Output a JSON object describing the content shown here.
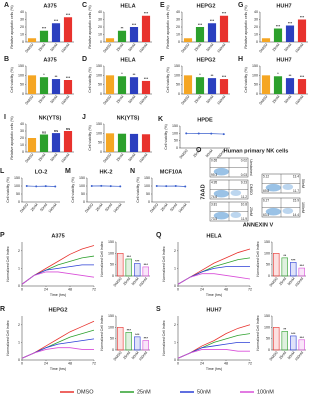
{
  "chart_data": [
    {
      "type": "bar",
      "panel": "A",
      "title": "A375",
      "ylabel": "Relative apoptotic cells (%)",
      "categories": [
        "DMSO",
        "25nM",
        "50nM",
        "100nM"
      ],
      "values": [
        5,
        15,
        25,
        33
      ],
      "sig": [
        null,
        "***",
        "***",
        "***"
      ],
      "colors": [
        "#f5a623",
        "#2ca02c",
        "#2b3fbf",
        "#e8322d"
      ],
      "ylim": [
        0,
        40
      ],
      "yticks": [
        0,
        10,
        20,
        30,
        40
      ]
    },
    {
      "type": "bar",
      "panel": "C",
      "title": "HELA",
      "ylabel": "Relative apoptotic cells (%)",
      "categories": [
        "DMSO",
        "25nM",
        "50nM",
        "100nM"
      ],
      "values": [
        5,
        15,
        20,
        35
      ],
      "sig": [
        null,
        "**",
        "***",
        "***"
      ],
      "colors": [
        "#f5a623",
        "#2ca02c",
        "#2b3fbf",
        "#e8322d"
      ],
      "ylim": [
        0,
        40
      ],
      "yticks": [
        0,
        10,
        20,
        30,
        40
      ]
    },
    {
      "type": "bar",
      "panel": "E",
      "title": "HEPG2",
      "ylabel": "Relative apoptotic cells (%)",
      "categories": [
        "DMSO",
        "25nM",
        "50nM",
        "100nM"
      ],
      "values": [
        5,
        20,
        25,
        35
      ],
      "sig": [
        null,
        "***",
        "***",
        "***"
      ],
      "colors": [
        "#f5a623",
        "#2ca02c",
        "#2b3fbf",
        "#e8322d"
      ],
      "ylim": [
        0,
        40
      ],
      "yticks": [
        0,
        10,
        20,
        30,
        40
      ]
    },
    {
      "type": "bar",
      "panel": "G",
      "title": "HUH7",
      "ylabel": "Relative apoptotic cells (%)",
      "categories": [
        "DMSO",
        "25nM",
        "50nM",
        "100nM"
      ],
      "values": [
        5,
        18,
        22,
        30
      ],
      "sig": [
        null,
        "***",
        "***",
        "***"
      ],
      "colors": [
        "#f5a623",
        "#2ca02c",
        "#2b3fbf",
        "#e8322d"
      ],
      "ylim": [
        0,
        40
      ],
      "yticks": [
        0,
        10,
        20,
        30,
        40
      ]
    },
    {
      "type": "bar",
      "panel": "B",
      "title": "A375",
      "ylabel": "Cell viability (%)",
      "categories": [
        "DMSO",
        "25nM",
        "50nM",
        "100nM"
      ],
      "values": [
        100,
        90,
        80,
        75
      ],
      "sig": [
        null,
        "*",
        "**",
        "***"
      ],
      "colors": [
        "#f5a623",
        "#2ca02c",
        "#2b3fbf",
        "#e8322d"
      ],
      "ylim": [
        0,
        150
      ],
      "yticks": [
        0,
        50,
        100,
        150
      ]
    },
    {
      "type": "bar",
      "panel": "D",
      "title": "HELA",
      "ylabel": "Cell viability (%)",
      "categories": [
        "DMSO",
        "25nM",
        "50nM",
        "100nM"
      ],
      "values": [
        100,
        95,
        90,
        70
      ],
      "sig": [
        null,
        "*",
        "**",
        "***"
      ],
      "colors": [
        "#f5a623",
        "#2ca02c",
        "#2b3fbf",
        "#e8322d"
      ],
      "ylim": [
        0,
        150
      ],
      "yticks": [
        0,
        50,
        100,
        150
      ]
    },
    {
      "type": "bar",
      "panel": "F",
      "title": "HEPG2",
      "ylabel": "Cell viability (%)",
      "categories": [
        "DMSO",
        "25nM",
        "50nM",
        "100nM"
      ],
      "values": [
        100,
        90,
        85,
        80
      ],
      "sig": [
        null,
        "*",
        "**",
        "***"
      ],
      "colors": [
        "#f5a623",
        "#2ca02c",
        "#2b3fbf",
        "#e8322d"
      ],
      "ylim": [
        0,
        150
      ],
      "yticks": [
        0,
        50,
        100,
        150
      ]
    },
    {
      "type": "bar",
      "panel": "H",
      "title": "HUH7",
      "ylabel": "Cell viability (%)",
      "categories": [
        "DMSO",
        "25nM",
        "50nM",
        "100nM"
      ],
      "values": [
        100,
        95,
        85,
        80
      ],
      "sig": [
        null,
        "*",
        "**",
        "***"
      ],
      "colors": [
        "#f5a623",
        "#2ca02c",
        "#2b3fbf",
        "#e8322d"
      ],
      "ylim": [
        0,
        150
      ],
      "yticks": [
        0,
        50,
        100,
        150
      ]
    },
    {
      "type": "bar",
      "panel": "I",
      "title": "NK(YTS)",
      "ylabel": "Relative apoptotic cells (%)",
      "categories": [
        "DMSO",
        "25nM",
        "50nM",
        "100nM"
      ],
      "values": [
        20,
        25,
        27,
        30
      ],
      "sig": [
        null,
        "ns",
        "ns",
        "ns"
      ],
      "colors": [
        "#f5a623",
        "#2ca02c",
        "#2b3fbf",
        "#e8322d"
      ],
      "ylim": [
        0,
        40
      ],
      "yticks": [
        0,
        10,
        20,
        30,
        40
      ]
    },
    {
      "type": "bar",
      "panel": "J",
      "title": "NK(YTS)",
      "ylabel": "Cell viability (%)",
      "categories": [
        "DMSO",
        "25nM",
        "50nM",
        "100nM"
      ],
      "values": [
        100,
        98,
        97,
        95
      ],
      "colors": [
        "#f5a623",
        "#2ca02c",
        "#2b3fbf",
        "#e8322d"
      ],
      "ylim": [
        0,
        150
      ],
      "yticks": [
        0,
        50,
        100,
        150
      ]
    },
    {
      "type": "line",
      "panel": "K",
      "title": "HPDE",
      "ylabel": "Cell viability (%)",
      "categories": [
        "DMSO",
        "25nM",
        "50nM",
        "100nM"
      ],
      "values": [
        100,
        99,
        98,
        95
      ],
      "color": "#3a5fcd",
      "ylim": [
        0,
        150
      ],
      "yticks": [
        0,
        50,
        100,
        150
      ]
    },
    {
      "type": "line",
      "panel": "L",
      "title": "LO-2",
      "ylabel": "Cell viability (%)",
      "categories": [
        "DMSO",
        "25nM",
        "50nM",
        "100nM"
      ],
      "values": [
        100,
        98,
        99,
        97
      ],
      "color": "#3a5fcd",
      "ylim": [
        0,
        150
      ],
      "yticks": [
        0,
        50,
        100,
        150
      ]
    },
    {
      "type": "line",
      "panel": "M",
      "title": "HK-2",
      "ylabel": "Cell viability (%)",
      "categories": [
        "DMSO",
        "25nM",
        "50nM",
        "100nM"
      ],
      "values": [
        100,
        101,
        99,
        98
      ],
      "color": "#3a5fcd",
      "ylim": [
        0,
        150
      ],
      "yticks": [
        0,
        50,
        100,
        150
      ]
    },
    {
      "type": "line",
      "panel": "N",
      "title": "MCF10A",
      "ylabel": "Cell viability (%)",
      "categories": [
        "DMSO",
        "25nM",
        "50nM",
        "100nM"
      ],
      "values": [
        100,
        99,
        100,
        97
      ],
      "color": "#3a5fcd",
      "ylim": [
        0,
        150
      ],
      "yticks": [
        0,
        50,
        100,
        150
      ]
    },
    {
      "type": "flow",
      "panel": "O",
      "title": "Human primary NK cells",
      "xlabel": "ANNEXIN V",
      "ylabel": "7AAD",
      "plots": [
        {
          "name": "Unstained",
          "quadrants": [
            0.65,
            0.02,
            99.3,
            0.03
          ]
        },
        {
          "name": "DMSO",
          "quadrants": [
            4.95,
            9.23,
            74.6,
            11.2
          ]
        },
        {
          "name": "25nM",
          "quadrants": [
            3.81,
            10.8,
            73.5,
            11.9
          ]
        },
        {
          "name": "50nM",
          "quadrants": [
            5.12,
            13.4,
            69.8,
            11.7
          ]
        },
        {
          "name": "100nM",
          "quadrants": [
            6.27,
            15.9,
            63.4,
            14.4
          ]
        }
      ]
    },
    {
      "type": "line",
      "panel": "P",
      "title": "A375",
      "ylabel": "Normalized Cell Index",
      "xlabel": "Time (hrs)",
      "x": [
        0,
        12,
        24,
        36,
        48,
        60,
        72
      ],
      "xlim": [
        0,
        72
      ],
      "xticks": [
        0,
        24,
        48,
        72
      ],
      "ylim": [
        0,
        2.5
      ],
      "yticks": [
        0,
        1,
        2
      ],
      "series": [
        {
          "name": "DMSO",
          "color": "#e8322d",
          "values": [
            0.1,
            0.6,
            1.0,
            1.4,
            1.8,
            2.1,
            2.3
          ]
        },
        {
          "name": "25nM",
          "color": "#2ca02c",
          "values": [
            0.1,
            0.6,
            0.9,
            1.2,
            1.4,
            1.6,
            1.7
          ]
        },
        {
          "name": "50nM",
          "color": "#2b3fd6",
          "values": [
            0.1,
            0.6,
            0.9,
            1.0,
            1.1,
            1.2,
            1.2
          ]
        },
        {
          "name": "100nM",
          "color": "#d94fd9",
          "values": [
            0.1,
            0.6,
            0.8,
            0.8,
            0.7,
            0.6,
            0.5
          ]
        }
      ]
    },
    {
      "type": "bar",
      "fill": "outline",
      "ylabel": "Normalized Cell Index",
      "categories": [
        "DMSO",
        "25nM",
        "50nM",
        "100nM"
      ],
      "values": [
        100,
        75,
        55,
        40
      ],
      "sig": [
        null,
        "***",
        "***",
        "***"
      ],
      "colors": [
        "#e8322d",
        "#2ca02c",
        "#2b3fd6",
        "#d94fd9"
      ],
      "ylim": [
        0,
        150
      ],
      "yticks": [
        0,
        50,
        100,
        150
      ]
    },
    {
      "type": "line",
      "panel": "Q",
      "title": "HELA",
      "ylabel": "Normalized Cell Index",
      "xlabel": "Time (hrs)",
      "x": [
        0,
        12,
        24,
        36,
        48,
        60,
        72
      ],
      "xlim": [
        0,
        72
      ],
      "xticks": [
        0,
        24,
        48,
        72
      ],
      "ylim": [
        0,
        2.5
      ],
      "yticks": [
        0,
        1,
        2
      ],
      "series": [
        {
          "color": "#e8322d",
          "values": [
            0.1,
            0.5,
            0.9,
            1.3,
            1.6,
            1.9,
            2.1
          ]
        },
        {
          "color": "#2ca02c",
          "values": [
            0.1,
            0.5,
            0.8,
            1.1,
            1.3,
            1.5,
            1.6
          ]
        },
        {
          "color": "#2b3fd6",
          "values": [
            0.1,
            0.5,
            0.8,
            1.0,
            1.1,
            1.1,
            1.1
          ]
        },
        {
          "color": "#d94fd9",
          "values": [
            0.1,
            0.5,
            0.7,
            0.7,
            0.6,
            0.5,
            0.4
          ]
        }
      ]
    },
    {
      "type": "bar",
      "fill": "outline",
      "ylabel": "Normalized Cell Index",
      "categories": [
        "DMSO",
        "25nM",
        "50nM",
        "100nM"
      ],
      "values": [
        100,
        80,
        60,
        35
      ],
      "sig": [
        null,
        "**",
        "***",
        "***"
      ],
      "colors": [
        "#e8322d",
        "#2ca02c",
        "#2b3fd6",
        "#d94fd9"
      ],
      "ylim": [
        0,
        150
      ],
      "yticks": [
        0,
        50,
        100,
        150
      ]
    },
    {
      "type": "line",
      "panel": "R",
      "title": "HEPG2",
      "ylabel": "Normalized Cell Index",
      "xlabel": "Time (hrs)",
      "x": [
        0,
        12,
        24,
        36,
        48,
        60,
        72
      ],
      "xlim": [
        0,
        72
      ],
      "xticks": [
        0,
        24,
        48,
        72
      ],
      "ylim": [
        0,
        2.5
      ],
      "yticks": [
        0,
        1,
        2
      ],
      "series": [
        {
          "color": "#e8322d",
          "values": [
            0.1,
            0.4,
            0.8,
            1.2,
            1.6,
            1.9,
            2.2
          ]
        },
        {
          "color": "#2ca02c",
          "values": [
            0.1,
            0.4,
            0.7,
            1.0,
            1.3,
            1.5,
            1.7
          ]
        },
        {
          "color": "#2b3fd6",
          "values": [
            0.1,
            0.4,
            0.7,
            0.9,
            1.0,
            1.1,
            1.2
          ]
        },
        {
          "color": "#d94fd9",
          "values": [
            0.1,
            0.4,
            0.6,
            0.7,
            0.7,
            0.6,
            0.6
          ]
        }
      ]
    },
    {
      "type": "bar",
      "fill": "outline",
      "ylabel": "Normalized Cell Index",
      "categories": [
        "DMSO",
        "25nM",
        "50nM",
        "100nM"
      ],
      "values": [
        100,
        78,
        58,
        42
      ],
      "sig": [
        null,
        "***",
        "***",
        "***"
      ],
      "colors": [
        "#e8322d",
        "#2ca02c",
        "#2b3fd6",
        "#d94fd9"
      ],
      "ylim": [
        0,
        150
      ],
      "yticks": [
        0,
        50,
        100,
        150
      ]
    },
    {
      "type": "line",
      "panel": "S",
      "title": "HUH7",
      "ylabel": "Normalized Cell Index",
      "xlabel": "Time (hrs)",
      "x": [
        0,
        12,
        24,
        36,
        48,
        60,
        72
      ],
      "xlim": [
        0,
        72
      ],
      "xticks": [
        0,
        24,
        48,
        72
      ],
      "ylim": [
        0,
        2.5
      ],
      "yticks": [
        0,
        1,
        2
      ],
      "series": [
        {
          "color": "#e8322d",
          "values": [
            0.1,
            0.4,
            0.8,
            1.1,
            1.5,
            1.8,
            2.0
          ]
        },
        {
          "color": "#2ca02c",
          "values": [
            0.1,
            0.4,
            0.7,
            1.0,
            1.2,
            1.4,
            1.5
          ]
        },
        {
          "color": "#2b3fd6",
          "values": [
            0.1,
            0.4,
            0.7,
            0.8,
            0.9,
            1.0,
            1.0
          ]
        },
        {
          "color": "#d94fd9",
          "values": [
            0.1,
            0.4,
            0.6,
            0.6,
            0.6,
            0.5,
            0.5
          ]
        }
      ]
    },
    {
      "type": "bar",
      "fill": "outline",
      "ylabel": "Normalized Cell Index",
      "categories": [
        "DMSO",
        "25nM",
        "50nM",
        "100nM"
      ],
      "values": [
        100,
        82,
        62,
        45
      ],
      "sig": [
        null,
        "**",
        "***",
        "***"
      ],
      "colors": [
        "#e8322d",
        "#2ca02c",
        "#2b3fd6",
        "#d94fd9"
      ],
      "ylim": [
        0,
        150
      ],
      "yticks": [
        0,
        50,
        100,
        150
      ]
    }
  ]
}
